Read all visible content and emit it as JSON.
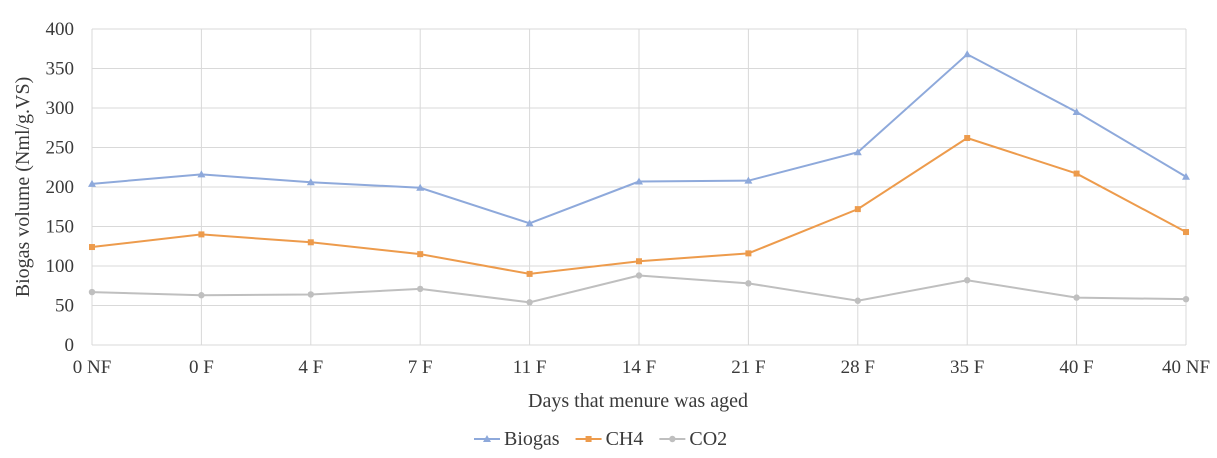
{
  "chart_data": {
    "type": "line",
    "title": "",
    "xlabel": "Days that menure was aged",
    "ylabel": "Biogas  volume (Nml/g.VS)",
    "ylim": [
      0,
      400
    ],
    "ytick_step": 50,
    "grid": true,
    "legend_position": "bottom",
    "categories": [
      "0 NF",
      "0 F",
      "4 F",
      "7 F",
      "11 F",
      "14 F",
      "21 F",
      "28 F",
      "35 F",
      "40 F",
      "40 NF"
    ],
    "series": [
      {
        "name": "Biogas",
        "color": "#8EA9DB",
        "marker": "triangle",
        "values": [
          204,
          216,
          206,
          199,
          154,
          207,
          208,
          244,
          368,
          295,
          213
        ]
      },
      {
        "name": "CH4",
        "color": "#ED9B4C",
        "marker": "square",
        "values": [
          124,
          140,
          130,
          115,
          90,
          106,
          116,
          172,
          262,
          217,
          143
        ]
      },
      {
        "name": "CO2",
        "color": "#BFBFBF",
        "marker": "circle",
        "values": [
          67,
          63,
          64,
          71,
          54,
          88,
          78,
          56,
          82,
          60,
          58
        ]
      }
    ]
  }
}
